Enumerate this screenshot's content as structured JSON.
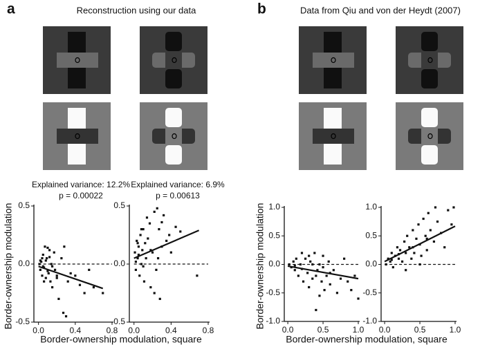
{
  "figure": {
    "panels": [
      {
        "label": "a",
        "title": "Reconstruction using our data",
        "xlabel": "Border-ownership modulation, square",
        "ylabel": "Border-ownership modulation"
      },
      {
        "label": "b",
        "title": "Data from Qiu and von der Heydt (2007)",
        "xlabel": "Border-ownership modulation, square",
        "ylabel": "Border-ownership modulation"
      }
    ]
  },
  "chart_data": [
    {
      "type": "scatter",
      "annotations": [
        "Explained variance: 12.2%",
        "p = 0.00022"
      ],
      "xlim": [
        -0.05,
        0.8
      ],
      "ylim": [
        -0.5,
        0.5
      ],
      "xticks": [
        {
          "value": 0,
          "label": "0.0"
        },
        0.4,
        0.8
      ],
      "yticks": [
        -0.5,
        {
          "value": 0,
          "label": "0.0"
        },
        0.5
      ],
      "reference_line": 0,
      "fit": {
        "x": [
          0,
          0.7
        ],
        "y": [
          -0.02,
          -0.21
        ]
      },
      "color": "#111111",
      "x": [
        0.01,
        0.02,
        0.03,
        0.04,
        0.05,
        0.06,
        0.07,
        0.08,
        0.09,
        0.1,
        0.11,
        0.12,
        0.13,
        0.14,
        0.15,
        0.17,
        0.18,
        0.2,
        0.22,
        0.25,
        0.27,
        0.3,
        0.32,
        0.35,
        0.4,
        0.45,
        0.5,
        0.55,
        0.6,
        0.7,
        0.04,
        0.06,
        0.08,
        0.1,
        0.12,
        0.15,
        0.2,
        0.28,
        0.02,
        0.05
      ],
      "y": [
        0.0,
        -0.05,
        0.02,
        -0.1,
        0.08,
        -0.03,
        0.15,
        -0.12,
        0.05,
        0.14,
        -0.08,
        0.12,
        -0.15,
        0.0,
        -0.2,
        0.1,
        -0.05,
        -0.1,
        -0.3,
        0.05,
        -0.42,
        -0.45,
        -0.15,
        -0.08,
        -0.1,
        -0.18,
        -0.25,
        -0.05,
        -0.2,
        -0.25,
        0.05,
        -0.15,
        0.03,
        -0.06,
        0.06,
        -0.02,
        -0.12,
        0.15,
        0.03,
        -0.02
      ]
    },
    {
      "type": "scatter",
      "annotations": [
        "Explained variance: 6.9%",
        "p = 0.00613"
      ],
      "xlim": [
        -0.05,
        0.8
      ],
      "ylim": [
        -0.5,
        0.5
      ],
      "xticks": [
        {
          "value": 0,
          "label": "0.0"
        },
        0.4,
        0.8
      ],
      "yticks": [
        -0.5,
        {
          "value": 0,
          "label": "0.0"
        },
        0.5
      ],
      "reference_line": 0,
      "fit": {
        "x": [
          0,
          0.7
        ],
        "y": [
          0.05,
          0.29
        ]
      },
      "color": "#111111",
      "x": [
        0.01,
        0.02,
        0.03,
        0.04,
        0.05,
        0.06,
        0.07,
        0.08,
        0.09,
        0.1,
        0.11,
        0.12,
        0.13,
        0.15,
        0.17,
        0.18,
        0.2,
        0.22,
        0.24,
        0.25,
        0.27,
        0.28,
        0.3,
        0.32,
        0.35,
        0.38,
        0.4,
        0.45,
        0.5,
        0.68,
        0.02,
        0.05,
        0.08,
        0.1,
        0.14,
        0.18,
        0.22,
        0.26,
        0.3,
        0.04
      ],
      "y": [
        0.1,
        -0.05,
        0.2,
        0.05,
        0.15,
        -0.1,
        0.25,
        0.0,
        0.12,
        0.3,
        -0.15,
        0.18,
        0.05,
        0.22,
        0.35,
        -0.2,
        0.1,
        0.45,
        -0.05,
        0.48,
        0.3,
        -0.3,
        0.15,
        0.42,
        0.2,
        0.25,
        0.1,
        0.32,
        0.28,
        -0.1,
        0.02,
        0.08,
        0.3,
        -0.02,
        0.4,
        0.12,
        -0.25,
        0.05,
        0.36,
        0.18
      ]
    },
    {
      "type": "scatter",
      "xlim": [
        -0.05,
        1.0
      ],
      "ylim": [
        -1.0,
        1.0
      ],
      "xticks": [
        {
          "value": 0,
          "label": "0.0"
        },
        0.5,
        {
          "value": 1,
          "label": "1.0"
        }
      ],
      "yticks": [
        {
          "value": -1,
          "label": "-1.0"
        },
        -0.5,
        {
          "value": 0,
          "label": "0.0"
        },
        0.5,
        {
          "value": 1,
          "label": "1.0"
        }
      ],
      "reference_line": 0,
      "fit": {
        "x": [
          0,
          1.0
        ],
        "y": [
          -0.03,
          -0.25
        ]
      },
      "color": "#111111",
      "x": [
        0.02,
        0.05,
        0.08,
        0.1,
        0.12,
        0.15,
        0.18,
        0.2,
        0.22,
        0.25,
        0.28,
        0.3,
        0.32,
        0.35,
        0.38,
        0.4,
        0.42,
        0.45,
        0.48,
        0.5,
        0.52,
        0.55,
        0.58,
        0.6,
        0.65,
        0.7,
        0.75,
        0.8,
        0.85,
        0.9,
        0.95,
        1.0,
        0.1,
        0.2,
        0.3,
        0.4,
        0.5,
        0.6,
        0.45,
        0.35
      ],
      "y": [
        0.0,
        -0.05,
        0.05,
        -0.1,
        0.1,
        -0.2,
        0.0,
        0.2,
        -0.3,
        0.1,
        -0.15,
        -0.4,
        0.05,
        -0.25,
        0.2,
        -0.8,
        -0.1,
        0.0,
        -0.3,
        0.15,
        -0.45,
        -0.2,
        0.05,
        -0.35,
        -0.1,
        -0.5,
        -0.25,
        0.1,
        -0.3,
        -0.45,
        -0.2,
        -0.6,
        -0.02,
        -0.08,
        0.15,
        -0.2,
        -0.05,
        -0.15,
        -0.55,
        0.0
      ]
    },
    {
      "type": "scatter",
      "xlim": [
        -0.05,
        1.0
      ],
      "ylim": [
        -1.0,
        1.0
      ],
      "xticks": [
        {
          "value": 0,
          "label": "0.0"
        },
        0.5,
        {
          "value": 1,
          "label": "1.0"
        }
      ],
      "yticks": [
        {
          "value": -1,
          "label": "-1.0"
        },
        -0.5,
        {
          "value": 0,
          "label": "0.0"
        },
        0.5,
        {
          "value": 1,
          "label": "1.0"
        }
      ],
      "reference_line": 0,
      "fit": {
        "x": [
          0,
          1.0
        ],
        "y": [
          0.05,
          0.67
        ]
      },
      "color": "#111111",
      "x": [
        0.02,
        0.05,
        0.08,
        0.1,
        0.12,
        0.15,
        0.18,
        0.2,
        0.22,
        0.25,
        0.28,
        0.3,
        0.32,
        0.35,
        0.38,
        0.4,
        0.42,
        0.45,
        0.48,
        0.5,
        0.52,
        0.55,
        0.58,
        0.6,
        0.62,
        0.65,
        0.7,
        0.72,
        0.75,
        0.8,
        0.85,
        0.9,
        0.95,
        0.98,
        0.1,
        0.2,
        0.3,
        0.4,
        0.5,
        0.6
      ],
      "y": [
        0.0,
        0.1,
        0.05,
        0.2,
        -0.05,
        0.15,
        0.3,
        0.1,
        0.25,
        0.05,
        0.4,
        0.2,
        0.5,
        0.3,
        0.1,
        0.6,
        0.2,
        0.45,
        0.7,
        0.35,
        0.15,
        0.8,
        0.5,
        0.25,
        0.9,
        0.6,
        0.4,
        1.0,
        0.75,
        0.55,
        0.3,
        0.95,
        0.7,
        1.0,
        0.08,
        0.18,
        -0.1,
        0.3,
        0.0,
        0.45
      ]
    }
  ]
}
